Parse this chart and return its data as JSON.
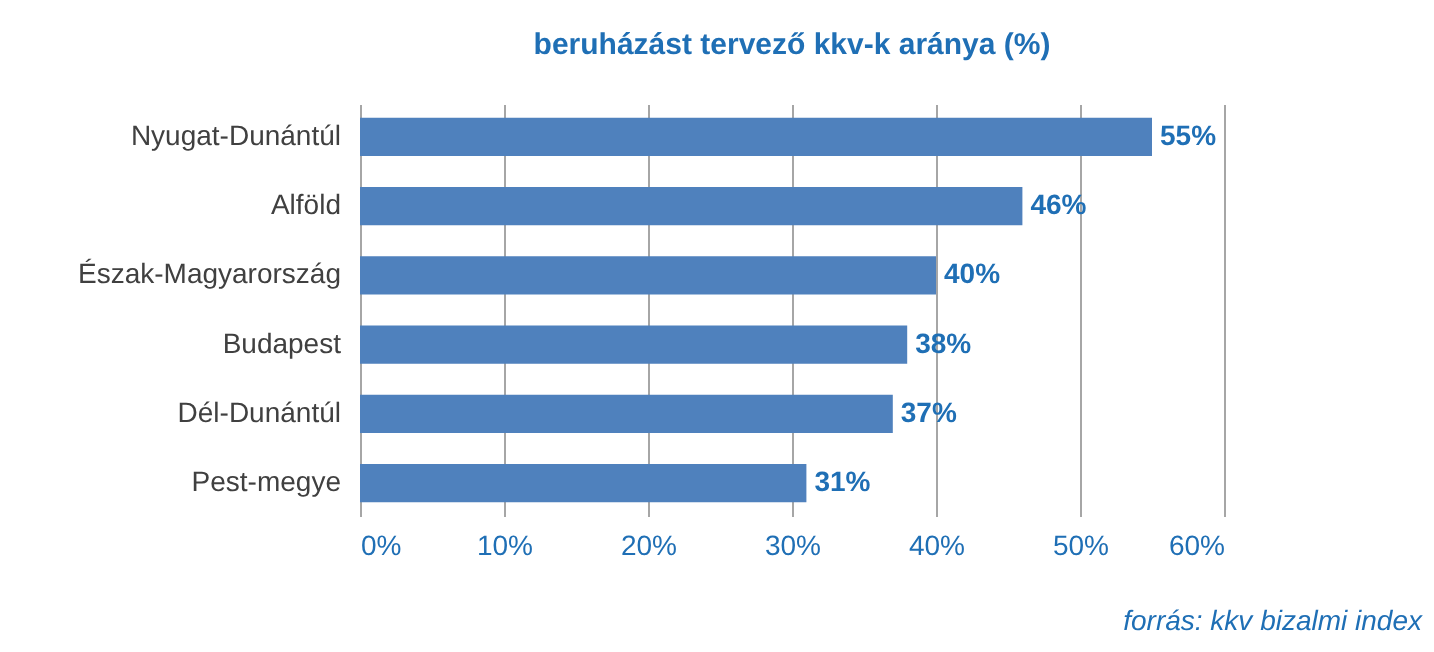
{
  "chart_data": {
    "type": "bar",
    "orientation": "horizontal",
    "title": "beruházást tervező kkv-k aránya (%)",
    "categories": [
      "Nyugat-Dunántúl",
      "Alföld",
      "Észak-Magyarország",
      "Budapest",
      "Dél-Dunántúl",
      "Pest-megye"
    ],
    "values": [
      55,
      46,
      40,
      38,
      37,
      31
    ],
    "value_labels": [
      "55%",
      "46%",
      "40%",
      "38%",
      "37%",
      "31%"
    ],
    "color": "#4f81bd",
    "xlim": [
      0,
      60
    ],
    "xticks": [
      {
        "value": 0,
        "label": "0%"
      },
      {
        "value": 10,
        "label": "10%"
      },
      {
        "value": 20,
        "label": "20%"
      },
      {
        "value": 30,
        "label": "30%"
      },
      {
        "value": 40,
        "label": "40%"
      },
      {
        "value": 50,
        "label": "50%"
      },
      {
        "value": 60,
        "label": "60%"
      }
    ],
    "grid": "x",
    "annotations": [
      "forrás: kkv bizalmi index"
    ]
  }
}
